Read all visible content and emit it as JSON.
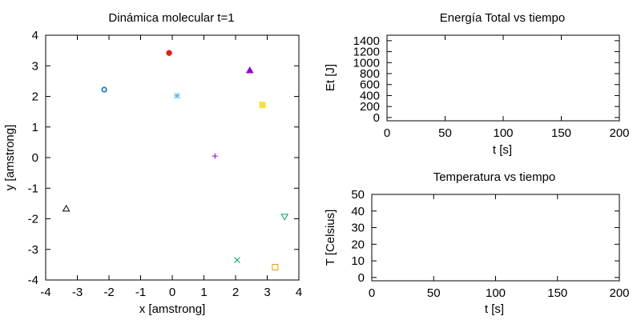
{
  "chart_data": [
    {
      "type": "scatter",
      "title": "Dinámica molecular t=1",
      "xlabel": "x [amstrong]",
      "ylabel": "y [amstrong]",
      "xlim": [
        -4,
        4
      ],
      "ylim": [
        -4,
        4
      ],
      "xticks": [
        -4,
        -3,
        -2,
        -1,
        0,
        1,
        2,
        3,
        4
      ],
      "yticks": [
        -4,
        -3,
        -2,
        -1,
        0,
        1,
        2,
        3,
        4
      ],
      "grid": false,
      "points": [
        {
          "x": 1.35,
          "y": 0.05,
          "marker": "plus",
          "color": "#9400d3"
        },
        {
          "x": 2.05,
          "y": -3.35,
          "marker": "cross",
          "color": "#009e73"
        },
        {
          "x": 0.15,
          "y": 2.02,
          "marker": "star",
          "color": "#56b4e9"
        },
        {
          "x": -3.35,
          "y": -1.67,
          "marker": "triangle-open",
          "color": "#000000"
        },
        {
          "x": 3.25,
          "y": -3.58,
          "marker": "square-open",
          "color": "#e69f00"
        },
        {
          "x": -0.1,
          "y": 3.42,
          "marker": "circle-filled",
          "color": "#e51e10"
        },
        {
          "x": 2.45,
          "y": 2.85,
          "marker": "triangle-filled",
          "color": "#9400d3"
        },
        {
          "x": 2.85,
          "y": 1.72,
          "marker": "square-filled",
          "color": "#f0e442"
        },
        {
          "x": -2.15,
          "y": 2.22,
          "marker": "circle-open",
          "color": "#0072b2"
        },
        {
          "x": 3.55,
          "y": -1.93,
          "marker": "triangle-down-open",
          "color": "#009e73"
        }
      ]
    },
    {
      "type": "line",
      "title": "Energía Total vs tiempo",
      "xlabel": "t [s]",
      "ylabel": "Et [J]",
      "xlim": [
        0,
        200
      ],
      "ylim": [
        -60,
        1500
      ],
      "xticks": [
        0,
        50,
        100,
        150,
        200
      ],
      "yticks": [
        0,
        200,
        400,
        600,
        800,
        1000,
        1200,
        1400
      ],
      "grid": false,
      "series": []
    },
    {
      "type": "line",
      "title": "Temperatura vs tiempo",
      "xlabel": "t [s]",
      "ylabel": "T [Celsius]",
      "xlim": [
        0,
        200
      ],
      "ylim": [
        -2,
        50
      ],
      "xticks": [
        0,
        50,
        100,
        150,
        200
      ],
      "yticks": [
        0,
        10,
        20,
        30,
        40,
        50
      ],
      "grid": false,
      "series": []
    }
  ]
}
